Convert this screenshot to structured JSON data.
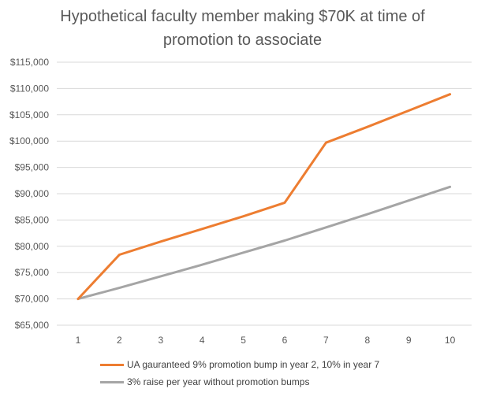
{
  "chart_data": {
    "type": "line",
    "title_line1": "Hypothetical faculty member making $70K at time of",
    "title_line2": "promotion to associate",
    "x": [
      1,
      2,
      3,
      4,
      5,
      6,
      7,
      8,
      9,
      10
    ],
    "x_tick_labels": [
      "1",
      "2",
      "3",
      "4",
      "5",
      "6",
      "7",
      "8",
      "9",
      "10"
    ],
    "y_tick_values": [
      65000,
      70000,
      75000,
      80000,
      85000,
      90000,
      95000,
      100000,
      105000,
      110000,
      115000
    ],
    "y_tick_labels": [
      "$65,000",
      "$70,000",
      "$75,000",
      "$80,000",
      "$85,000",
      "$90,000",
      "$95,000",
      "$100,000",
      "$105,000",
      "$110,000",
      "$115,000"
    ],
    "ylim": [
      65000,
      115000
    ],
    "grid": true,
    "legend_position": "bottom",
    "series": [
      {
        "name": "UA gauranteed 9% promotion bump in year 2, 10% in year 7",
        "color": "#ED7D31",
        "values": [
          70000,
          78400,
          80900,
          83300,
          85700,
          88300,
          99700,
          102700,
          105800,
          108900
        ]
      },
      {
        "name": "3% raise per year without promotion bumps",
        "color": "#A5A5A5",
        "values": [
          70000,
          72100,
          74300,
          76500,
          78800,
          81100,
          83600,
          86100,
          88700,
          91300
        ]
      }
    ]
  }
}
